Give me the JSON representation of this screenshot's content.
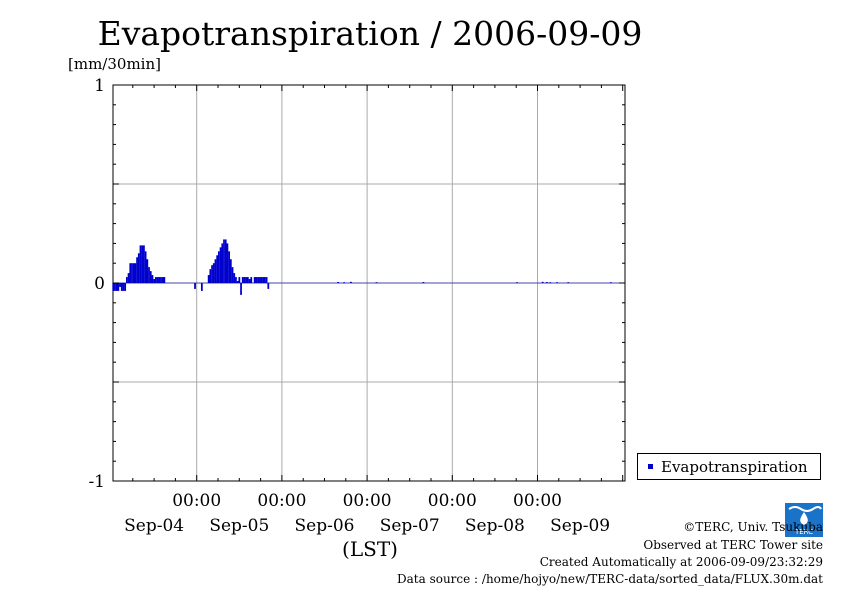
{
  "title": "Evapotranspiration / 2006-09-09",
  "unit": "[mm/30min]",
  "legend": {
    "label": "Evapotranspiration",
    "color": "#0000cc"
  },
  "credits": {
    "copyright": "©TERC, Univ. Tsukuba",
    "observed": "Observed at TERC Tower site",
    "created": "Created Automatically at 2006-09-09/23:32:29",
    "source": "Data source : /home/hojyo/new/TERC-data/sorted_data/FLUX.30m.dat"
  },
  "logo_text": "TERC",
  "chart_data": {
    "type": "bar",
    "title": "Evapotranspiration / 2006-09-09",
    "ylabel": "[mm/30min]",
    "xlabel": "(LST)",
    "ylim": [
      -1,
      1
    ],
    "y_ticks": [
      "1",
      "0",
      "-1"
    ],
    "x_time_labels": [
      "00:00",
      "00:00",
      "00:00",
      "00:00",
      "00:00"
    ],
    "x_date_labels": [
      "Sep-04",
      "Sep-05",
      "Sep-06",
      "Sep-07",
      "Sep-08",
      "Sep-09"
    ],
    "x_range_days": [
      0,
      6
    ],
    "grid": true,
    "legend_position": "right",
    "series": [
      {
        "name": "Evapotranspiration",
        "color": "#0000cc",
        "points": [
          [
            0.01,
            -0.04
          ],
          [
            0.03,
            -0.04
          ],
          [
            0.05,
            -0.04
          ],
          [
            0.07,
            -0.04
          ],
          [
            0.09,
            -0.02
          ],
          [
            0.11,
            -0.04
          ],
          [
            0.13,
            -0.04
          ],
          [
            0.15,
            -0.04
          ],
          [
            0.17,
            0.03
          ],
          [
            0.19,
            0.05
          ],
          [
            0.21,
            0.1
          ],
          [
            0.23,
            0.1
          ],
          [
            0.25,
            0.1
          ],
          [
            0.27,
            0.1
          ],
          [
            0.29,
            0.13
          ],
          [
            0.31,
            0.15
          ],
          [
            0.33,
            0.19
          ],
          [
            0.35,
            0.19
          ],
          [
            0.37,
            0.19
          ],
          [
            0.39,
            0.16
          ],
          [
            0.41,
            0.12
          ],
          [
            0.43,
            0.08
          ],
          [
            0.45,
            0.06
          ],
          [
            0.47,
            0.04
          ],
          [
            0.49,
            0.02
          ],
          [
            0.51,
            0.03
          ],
          [
            0.53,
            0.03
          ],
          [
            0.55,
            0.03
          ],
          [
            0.57,
            0.03
          ],
          [
            0.59,
            0.03
          ],
          [
            0.61,
            0.03
          ],
          [
            0.97,
            -0.03
          ],
          [
            1.05,
            -0.04
          ],
          [
            1.13,
            0.04
          ],
          [
            1.15,
            0.07
          ],
          [
            1.17,
            0.09
          ],
          [
            1.19,
            0.1
          ],
          [
            1.21,
            0.12
          ],
          [
            1.23,
            0.14
          ],
          [
            1.25,
            0.16
          ],
          [
            1.27,
            0.18
          ],
          [
            1.29,
            0.2
          ],
          [
            1.31,
            0.22
          ],
          [
            1.33,
            0.22
          ],
          [
            1.35,
            0.2
          ],
          [
            1.37,
            0.16
          ],
          [
            1.39,
            0.12
          ],
          [
            1.41,
            0.08
          ],
          [
            1.43,
            0.05
          ],
          [
            1.45,
            0.03
          ],
          [
            1.47,
            0.01
          ],
          [
            1.49,
            0.03
          ],
          [
            1.51,
            -0.06
          ],
          [
            1.53,
            0.03
          ],
          [
            1.55,
            0.03
          ],
          [
            1.57,
            0.03
          ],
          [
            1.59,
            0.03
          ],
          [
            1.61,
            0.02
          ],
          [
            1.63,
            0.03
          ],
          [
            1.67,
            0.03
          ],
          [
            1.69,
            0.03
          ],
          [
            1.71,
            0.03
          ],
          [
            1.73,
            0.03
          ],
          [
            1.75,
            0.03
          ],
          [
            1.77,
            0.03
          ],
          [
            1.79,
            0.03
          ],
          [
            1.81,
            0.03
          ],
          [
            1.83,
            -0.03
          ],
          [
            2.65,
            0.005
          ],
          [
            2.72,
            0.004
          ],
          [
            2.8,
            0.006
          ],
          [
            3.1,
            0.004
          ],
          [
            3.65,
            0.005
          ],
          [
            4.75,
            0.004
          ],
          [
            5.05,
            0.006
          ],
          [
            5.1,
            0.005
          ],
          [
            5.14,
            0.004
          ],
          [
            5.22,
            0.004
          ],
          [
            5.35,
            0.004
          ],
          [
            5.85,
            0.004
          ]
        ]
      }
    ]
  }
}
